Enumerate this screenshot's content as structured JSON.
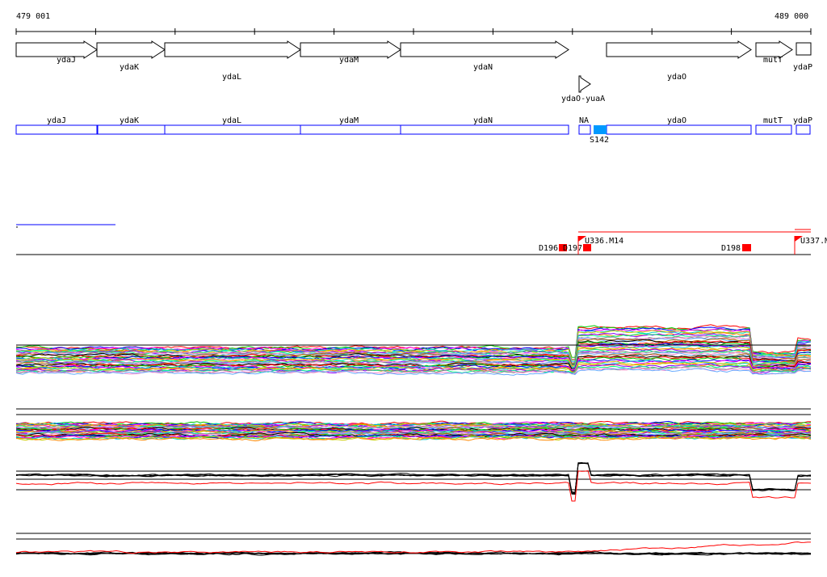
{
  "ruler": {
    "start_label": "479 001",
    "end_label": "489 000"
  },
  "genes": [
    {
      "name": "ydaJ"
    },
    {
      "name": "ydaK"
    },
    {
      "name": "ydaL"
    },
    {
      "name": "ydaM"
    },
    {
      "name": "ydaN"
    },
    {
      "name": "ydaO"
    },
    {
      "name": "mutT"
    },
    {
      "name": "ydaP"
    }
  ],
  "small_feature": {
    "name": "ydaO-yuaA"
  },
  "regions": [
    {
      "name": "ydaJ"
    },
    {
      "name": "ydaK"
    },
    {
      "name": "ydaL"
    },
    {
      "name": "ydaM"
    },
    {
      "name": "ydaN"
    },
    {
      "name": "NA"
    },
    {
      "name": "ydaO"
    },
    {
      "name": "mutT"
    },
    {
      "name": "ydaP"
    }
  ],
  "highlight_region": {
    "label": "S142",
    "color": "#0099ff"
  },
  "markers": [
    {
      "label": "D196"
    },
    {
      "label": "D197"
    },
    {
      "label": "U336.M14"
    },
    {
      "label": "D198"
    },
    {
      "label": "U337.M"
    }
  ],
  "colors": {
    "gene_outline": "#000000",
    "region_outline": "#0000ff",
    "marker": "#ff0000"
  }
}
